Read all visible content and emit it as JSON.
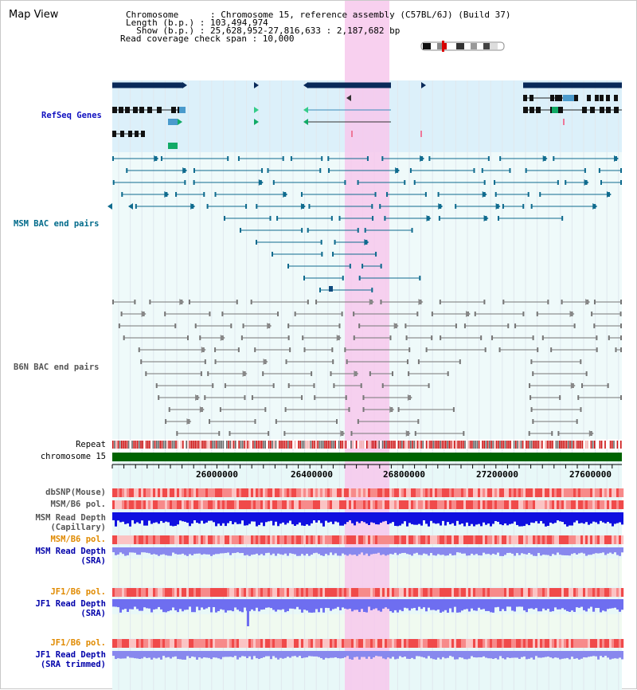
{
  "title": "Map View",
  "info": {
    "chromosome": "Chromosome      : Chromosome 15, reference assembly (C57BL/6J) (Build 37)",
    "length": "Length (b.p.) : 103,494,974",
    "show": "  Show (b.p.) : 25,628,952-27,816,633 : 2,187,682 bp",
    "coverage": "Read coverage check span : 10,000"
  },
  "tracks": {
    "refseq": "RefSeq Genes",
    "msm_bac": "MSM BAC end pairs",
    "b6n_bac": "B6N BAC end pairs",
    "repeat": "Repeat",
    "chromosome": "chromosome 15",
    "dbsnp": "dbSNP(Mouse)",
    "msm_b6_pol_1": "MSM/B6 pol.",
    "msm_depth_cap_1": "MSM Read Depth",
    "msm_depth_cap_2": "(Capillary)",
    "msm_b6_pol_2": "MSM/B6 pol.",
    "msm_depth_sra_1": "MSM Read Depth",
    "msm_depth_sra_2": "(SRA)",
    "jf1_b6_pol_1": "JF1/B6 pol.",
    "jf1_depth_sra_1": "JF1 Read Depth",
    "jf1_depth_sra_2": "(SRA)",
    "jf1_b6_pol_2": "JF1/B6 pol.",
    "jf1_depth_trim_1": "JF1 Read Depth",
    "jf1_depth_trim_2": "(SRA trimmed)"
  },
  "axis": {
    "ticks": [
      "26000000",
      "26400000",
      "26800000",
      "27200000",
      "27600000"
    ]
  },
  "colors": {
    "refseq_label": "#1010c0",
    "msm_label": "#006a8a",
    "b6n_label": "#555555",
    "pol_orange": "#e08a00",
    "depth_blue": "#0000aa",
    "highlight": "#f7c8ec",
    "gene_dark": "#0a2a5a",
    "msm_pair": "#0f6b8e",
    "b6n_pair": "#777777"
  }
}
